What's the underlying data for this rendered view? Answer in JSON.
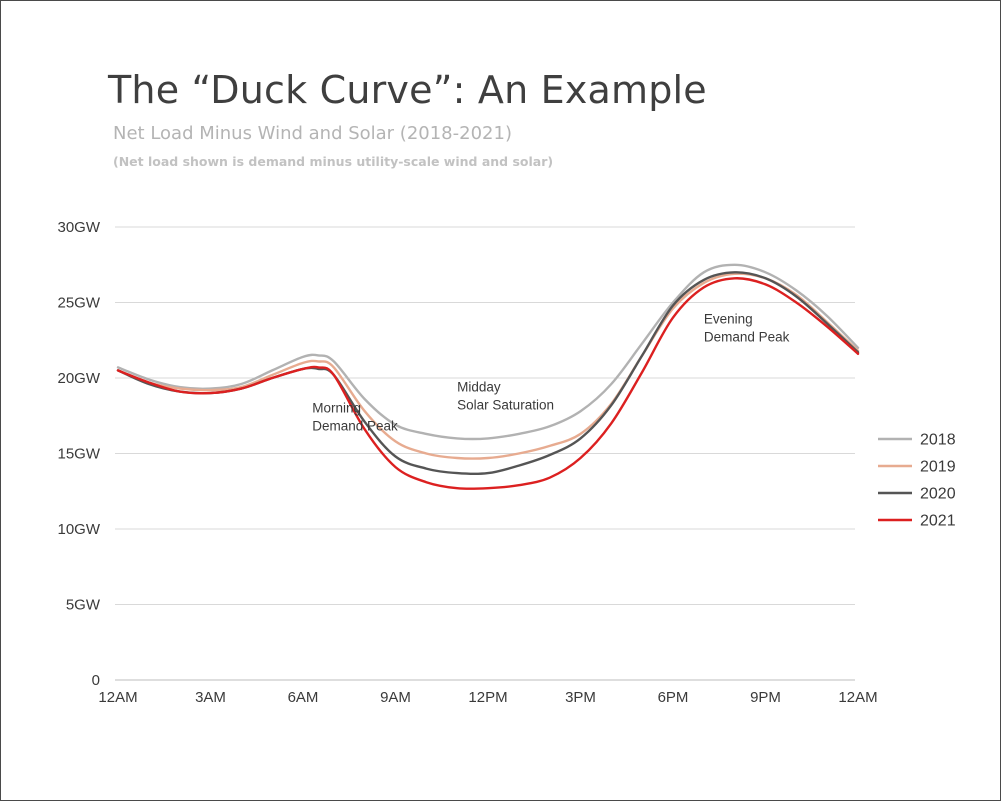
{
  "chart_data": {
    "type": "line",
    "title": "The “Duck Curve”: An Example",
    "subtitle": "Net Load Minus Wind and Solar (2018-2021)",
    "note": "(Net load shown is demand minus utility-scale wind and solar)",
    "xlabel": "",
    "ylabel": "",
    "x_ticks": [
      "12AM",
      "3AM",
      "6AM",
      "9AM",
      "12PM",
      "3PM",
      "6PM",
      "9PM",
      "12AM"
    ],
    "y_ticks": [
      {
        "value": 0,
        "label": "0"
      },
      {
        "value": 5,
        "label": "5GW"
      },
      {
        "value": 10,
        "label": "10GW"
      },
      {
        "value": 15,
        "label": "15GW"
      },
      {
        "value": 20,
        "label": "20GW"
      },
      {
        "value": 25,
        "label": "25GW"
      },
      {
        "value": 30,
        "label": "30GW"
      }
    ],
    "xlim": [
      0,
      24
    ],
    "ylim": [
      0,
      30
    ],
    "grid": true,
    "legend_position": "right",
    "x": [
      0,
      1,
      2,
      3,
      4,
      5,
      6,
      6.5,
      7,
      8,
      9,
      10,
      11,
      12,
      13,
      14,
      15,
      16,
      17,
      18,
      19,
      20,
      21,
      22,
      23,
      24
    ],
    "series": [
      {
        "name": "2018",
        "color": "#b2b2b2",
        "values": [
          20.7,
          19.9,
          19.4,
          19.3,
          19.6,
          20.5,
          21.4,
          21.5,
          21.1,
          18.6,
          16.9,
          16.3,
          16.0,
          16.0,
          16.3,
          16.8,
          17.8,
          19.6,
          22.3,
          25.0,
          27.0,
          27.5,
          27.0,
          25.8,
          24.1,
          22.0
        ]
      },
      {
        "name": "2019",
        "color": "#e7ab90",
        "values": [
          20.5,
          19.7,
          19.3,
          19.2,
          19.4,
          20.2,
          21.0,
          21.1,
          20.7,
          17.8,
          15.8,
          15.0,
          14.7,
          14.7,
          15.0,
          15.5,
          16.3,
          18.3,
          21.5,
          24.6,
          26.3,
          26.9,
          26.6,
          25.5,
          23.7,
          21.8
        ]
      },
      {
        "name": "2020",
        "color": "#555555",
        "values": [
          20.5,
          19.6,
          19.1,
          19.0,
          19.3,
          20.0,
          20.6,
          20.6,
          20.2,
          17.1,
          14.8,
          14.0,
          13.7,
          13.7,
          14.2,
          14.9,
          16.0,
          18.2,
          21.5,
          24.8,
          26.5,
          27.0,
          26.6,
          25.4,
          23.6,
          21.7
        ]
      },
      {
        "name": "2021",
        "color": "#dc2020",
        "values": [
          20.5,
          19.7,
          19.1,
          19.0,
          19.3,
          20.0,
          20.6,
          20.7,
          20.2,
          16.6,
          14.1,
          13.1,
          12.7,
          12.7,
          12.9,
          13.4,
          14.7,
          17.0,
          20.4,
          24.0,
          26.0,
          26.6,
          26.2,
          25.0,
          23.4,
          21.6
        ]
      }
    ],
    "annotations": [
      {
        "lines": [
          "Morning",
          "Demand Peak"
        ],
        "x": 6.3,
        "y": 17.7,
        "align": "left"
      },
      {
        "lines": [
          "Midday",
          "Solar Saturation"
        ],
        "x": 11.0,
        "y": 19.1,
        "align": "left"
      },
      {
        "lines": [
          "Evening",
          "Demand Peak"
        ],
        "x": 19.0,
        "y": 23.6,
        "align": "left"
      }
    ]
  }
}
